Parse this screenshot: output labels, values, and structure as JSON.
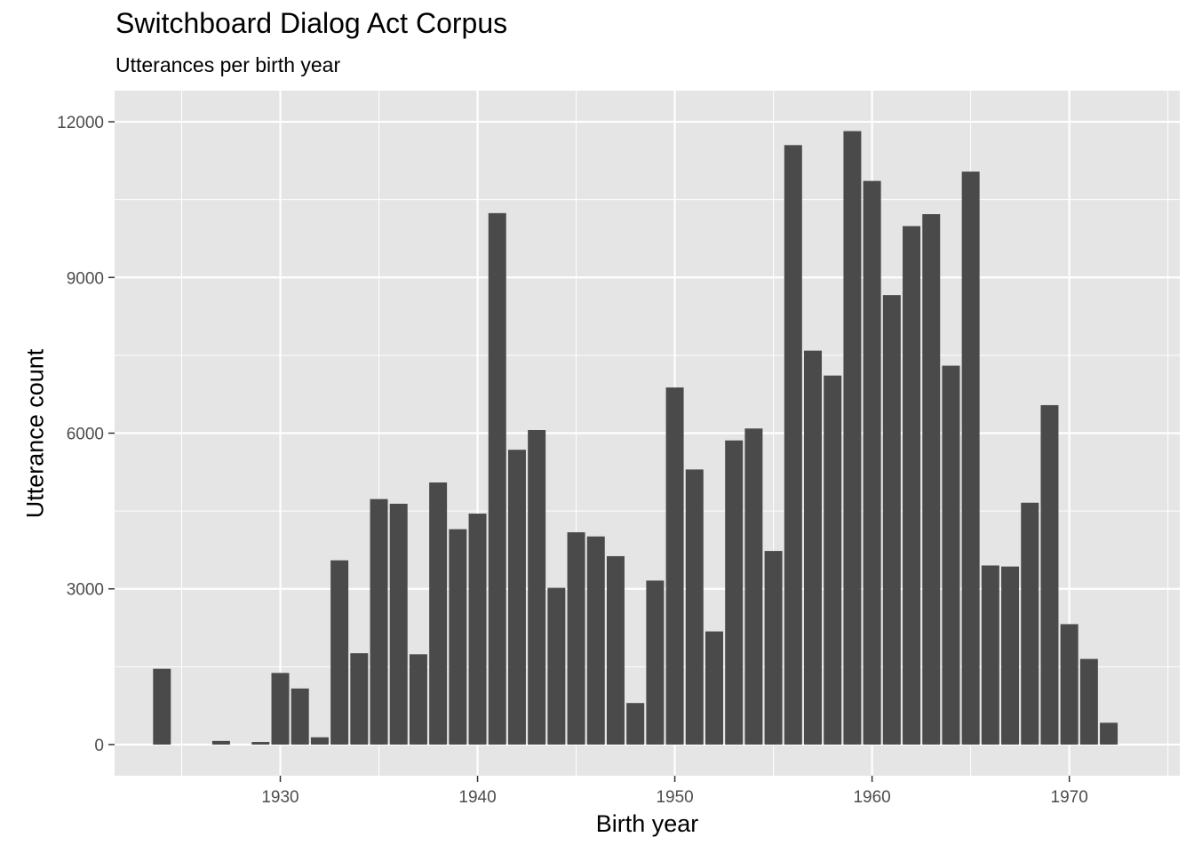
{
  "chart_data": {
    "type": "bar",
    "title": "Switchboard Dialog Act Corpus",
    "subtitle": "Utterances per birth year",
    "xlabel": "Birth year",
    "ylabel": "Utterance count",
    "xlim": [
      1921.6,
      1975.6
    ],
    "ylim": [
      -600,
      12600
    ],
    "xticks": [
      1930,
      1940,
      1950,
      1960,
      1970
    ],
    "yticks": [
      0,
      3000,
      6000,
      9000,
      12000
    ],
    "grid": true,
    "colors": {
      "bar": "#4a4a4a",
      "panel": "#e5e5e5",
      "grid": "#ffffff"
    },
    "x": [
      1924,
      1927,
      1929,
      1930,
      1931,
      1932,
      1933,
      1934,
      1935,
      1936,
      1937,
      1938,
      1939,
      1940,
      1941,
      1942,
      1943,
      1944,
      1945,
      1946,
      1947,
      1948,
      1949,
      1950,
      1951,
      1952,
      1953,
      1954,
      1955,
      1956,
      1957,
      1958,
      1959,
      1960,
      1961,
      1962,
      1963,
      1964,
      1965,
      1966,
      1967,
      1968,
      1969,
      1970,
      1971,
      1972
    ],
    "values": [
      1460,
      70,
      50,
      1380,
      1080,
      140,
      3550,
      1760,
      4730,
      4640,
      1740,
      5050,
      4150,
      4450,
      10240,
      5680,
      6060,
      3020,
      4090,
      4010,
      3630,
      800,
      3160,
      6880,
      5300,
      2180,
      5860,
      6090,
      3730,
      11550,
      7590,
      7110,
      11820,
      10860,
      8660,
      9990,
      10220,
      7300,
      11040,
      3450,
      3430,
      4660,
      6540,
      2320,
      1650,
      420
    ]
  }
}
